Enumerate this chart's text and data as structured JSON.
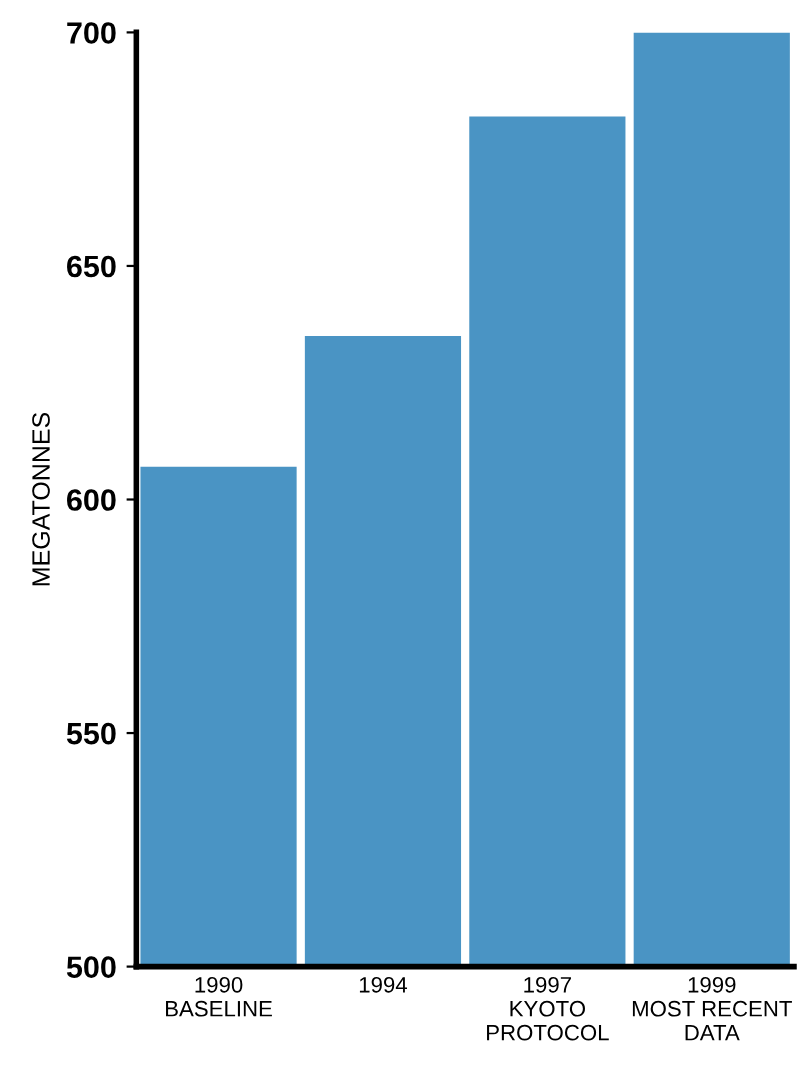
{
  "chart_data": {
    "type": "bar",
    "ylabel": "MEGATONNES",
    "categories": [
      "1990\nBASELINE",
      "1994",
      "1997\nKYOTO\nPROTOCOL",
      "1999\nMOST RECENT\nDATA"
    ],
    "values": [
      607,
      635,
      682,
      700
    ],
    "color": "#4a94c4",
    "ylim": [
      500,
      700
    ],
    "yticks": [
      500,
      550,
      600,
      650,
      700
    ],
    "grid": false,
    "legend": false
  }
}
